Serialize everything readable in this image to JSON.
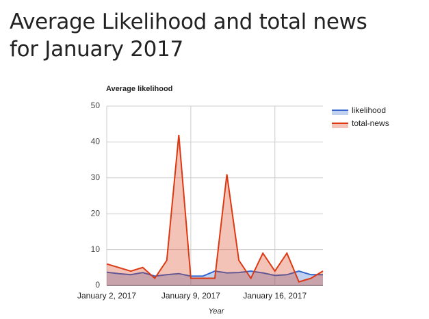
{
  "chart_data": {
    "type": "area",
    "title": "Average Likelihood and total news for January 2017",
    "subtitle": "Average likelihood",
    "xlabel": "Year",
    "x": [
      "2017-01-02",
      "2017-01-03",
      "2017-01-04",
      "2017-01-05",
      "2017-01-06",
      "2017-01-07",
      "2017-01-08",
      "2017-01-09",
      "2017-01-10",
      "2017-01-11",
      "2017-01-12",
      "2017-01-13",
      "2017-01-14",
      "2017-01-15",
      "2017-01-16",
      "2017-01-17",
      "2017-01-18",
      "2017-01-19",
      "2017-01-20"
    ],
    "series": [
      {
        "name": "likelihood",
        "color": "#3366cc",
        "values": [
          3.7,
          3.3,
          3,
          3.6,
          2.6,
          3,
          3.3,
          2.6,
          2.6,
          4,
          3.5,
          3.6,
          4,
          3.5,
          2.8,
          3,
          4,
          3,
          3
        ]
      },
      {
        "name": "total-news",
        "color": "#dc3912",
        "values": [
          6,
          5,
          4,
          5,
          2,
          7,
          42,
          2,
          2,
          2,
          31,
          7,
          2,
          9,
          4,
          9,
          1,
          2,
          4
        ]
      }
    ],
    "xlim": [
      "2017-01-02",
      "2017-01-20"
    ],
    "xticks": [
      {
        "value": "2017-01-02",
        "label": "January 2, 2017"
      },
      {
        "value": "2017-01-09",
        "label": "January 9, 2017"
      },
      {
        "value": "2017-01-16",
        "label": "January 16, 2017"
      }
    ],
    "ylim": [
      0,
      50
    ],
    "yticks": [
      0,
      10,
      20,
      30,
      40,
      50
    ],
    "grid": true,
    "legend": "right"
  }
}
